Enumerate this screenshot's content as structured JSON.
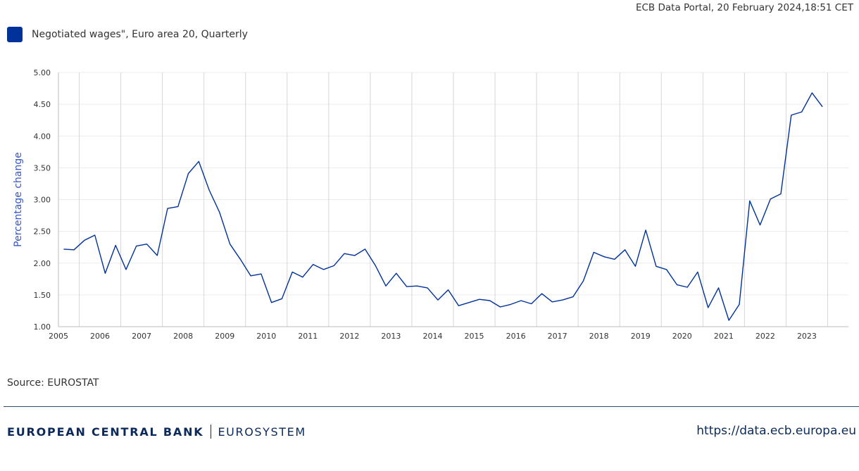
{
  "header": {
    "timestamp": "ECB Data Portal, 20 February 2024,18:51 CET"
  },
  "legend": {
    "label": "Negotiated wages\", Euro area 20, Quarterly",
    "color": "#003299"
  },
  "source": "Source: EUROSTAT",
  "footer": {
    "brand": "EUROPEAN CENTRAL BANK",
    "sub": "EUROSYSTEM",
    "url": "https://data.ecb.europa.eu"
  },
  "chart_data": {
    "type": "line",
    "title": "",
    "xlabel": "",
    "ylabel": "Percentage change",
    "ylim": [
      1.0,
      5.0
    ],
    "yticks": [
      "1.00",
      "1.50",
      "2.00",
      "2.50",
      "3.00",
      "3.50",
      "4.00",
      "4.50",
      "5.00"
    ],
    "x_start_year": 2005,
    "x_end_year": 2024,
    "xtick_labels": [
      "2005",
      "2006",
      "2007",
      "2008",
      "2009",
      "2010",
      "2011",
      "2012",
      "2013",
      "2014",
      "2015",
      "2016",
      "2017",
      "2018",
      "2019",
      "2020",
      "2021",
      "2022",
      "2023"
    ],
    "series": [
      {
        "name": "Negotiated wages\", Euro area 20, Quarterly",
        "color": "#003299",
        "start": "2005Q1",
        "values": [
          2.22,
          2.21,
          2.36,
          2.44,
          1.84,
          2.28,
          1.9,
          2.27,
          2.3,
          2.12,
          2.86,
          2.89,
          3.41,
          3.6,
          3.15,
          2.8,
          2.3,
          2.06,
          1.8,
          1.83,
          1.38,
          1.44,
          1.86,
          1.78,
          1.98,
          1.9,
          1.96,
          2.15,
          2.12,
          2.22,
          1.96,
          1.64,
          1.84,
          1.63,
          1.64,
          1.61,
          1.42,
          1.58,
          1.33,
          1.38,
          1.43,
          1.41,
          1.31,
          1.35,
          1.41,
          1.36,
          1.52,
          1.39,
          1.42,
          1.47,
          1.72,
          2.17,
          2.1,
          2.06,
          2.21,
          1.95,
          2.52,
          1.95,
          1.9,
          1.66,
          1.62,
          1.86,
          1.3,
          1.61,
          1.1,
          1.35,
          2.98,
          2.6,
          3.01,
          3.09,
          4.33,
          4.38,
          4.68,
          4.46
        ]
      }
    ]
  }
}
